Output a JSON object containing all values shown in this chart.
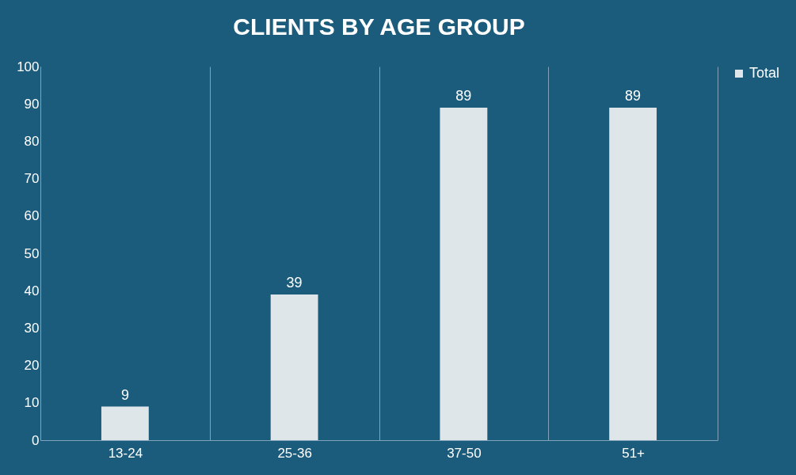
{
  "chart_data": {
    "type": "bar",
    "title": "CLIENTS BY AGE GROUP",
    "categories": [
      "13-24",
      "25-36",
      "37-50",
      "51+"
    ],
    "series": [
      {
        "name": "Total",
        "color": "#dfe6ea",
        "values": [
          9,
          39,
          89,
          89
        ]
      }
    ],
    "ylim": [
      0,
      100
    ],
    "yticks": [
      0,
      10,
      20,
      30,
      40,
      50,
      60,
      70,
      80,
      90,
      100
    ],
    "grid": "x",
    "legend": "right",
    "data_labels": true
  }
}
